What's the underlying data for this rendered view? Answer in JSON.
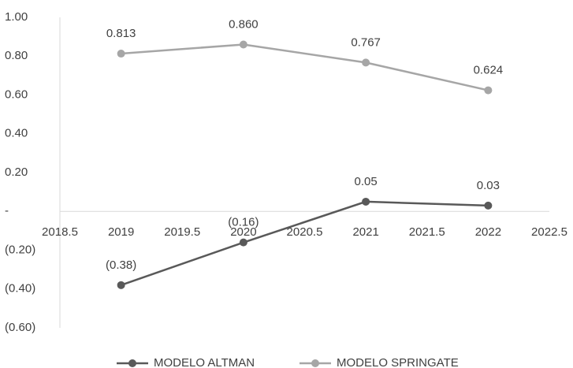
{
  "chart_data": {
    "type": "line",
    "x": [
      2019,
      2020,
      2021,
      2022
    ],
    "series": [
      {
        "name": "MODELO ALTMAN",
        "color": "#595959",
        "values": [
          -0.38,
          -0.16,
          0.05,
          0.03
        ],
        "value_labels": [
          "(0.38)",
          "(0.16)",
          "0.05",
          "0.03"
        ]
      },
      {
        "name": "MODELO SPRINGATE",
        "color": "#a6a6a6",
        "values": [
          0.813,
          0.86,
          0.767,
          0.624
        ],
        "value_labels": [
          "0.813",
          "0.860",
          "0.767",
          "0.624"
        ]
      }
    ],
    "xlim": [
      2018.5,
      2022.5
    ],
    "xticks": [
      2018.5,
      2019,
      2019.5,
      2020,
      2020.5,
      2021,
      2021.5,
      2022,
      2022.5
    ],
    "ylim": [
      -0.6,
      1.0
    ],
    "yticks": [
      {
        "value": -0.6,
        "label": "(0.60)"
      },
      {
        "value": -0.4,
        "label": "(0.40)"
      },
      {
        "value": -0.2,
        "label": "(0.20)"
      },
      {
        "value": 0,
        "label": "-"
      },
      {
        "value": 0.2,
        "label": "0.20"
      },
      {
        "value": 0.4,
        "label": "0.40"
      },
      {
        "value": 0.6,
        "label": "0.60"
      },
      {
        "value": 0.8,
        "label": "0.80"
      },
      {
        "value": 1,
        "label": "1.00"
      }
    ],
    "legend": "bottom"
  }
}
